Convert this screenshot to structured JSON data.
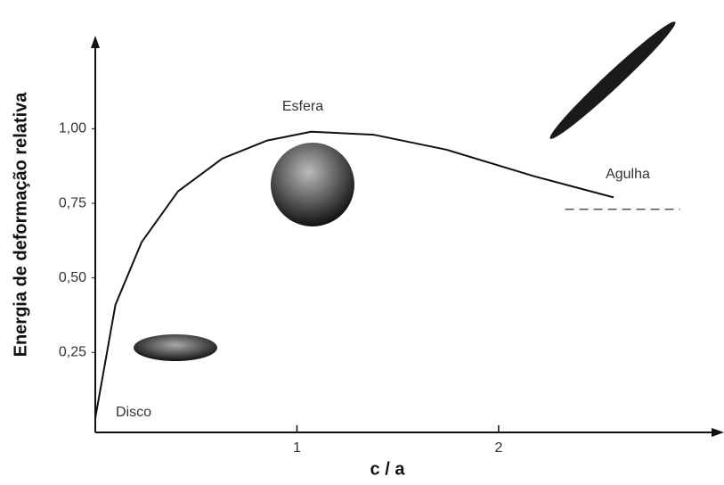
{
  "chart_data": {
    "type": "line",
    "xlabel": "c / a",
    "ylabel": "Energia de deformação relativa",
    "x": [
      0,
      0.1,
      0.23,
      0.41,
      0.63,
      0.85,
      1.07,
      1.38,
      1.74,
      2.18,
      2.57
    ],
    "y": [
      0.03,
      0.41,
      0.62,
      0.79,
      0.9,
      0.96,
      0.99,
      0.98,
      0.93,
      0.84,
      0.77
    ],
    "color": "#111111",
    "xlim": [
      0,
      3.1
    ],
    "ylim": [
      0,
      1.3
    ],
    "xticks": [
      1,
      2
    ],
    "yticks": [
      {
        "value": 0.25,
        "label": "0,25"
      },
      {
        "value": 0.5,
        "label": "0,50"
      },
      {
        "value": 0.75,
        "label": "0,75"
      },
      {
        "value": 1,
        "label": "1,00"
      }
    ],
    "asymptote": {
      "y": 0.73,
      "x": [
        2.33,
        2.9
      ]
    },
    "annotations": [
      "Esfera",
      "Agulha",
      "Disco"
    ]
  }
}
